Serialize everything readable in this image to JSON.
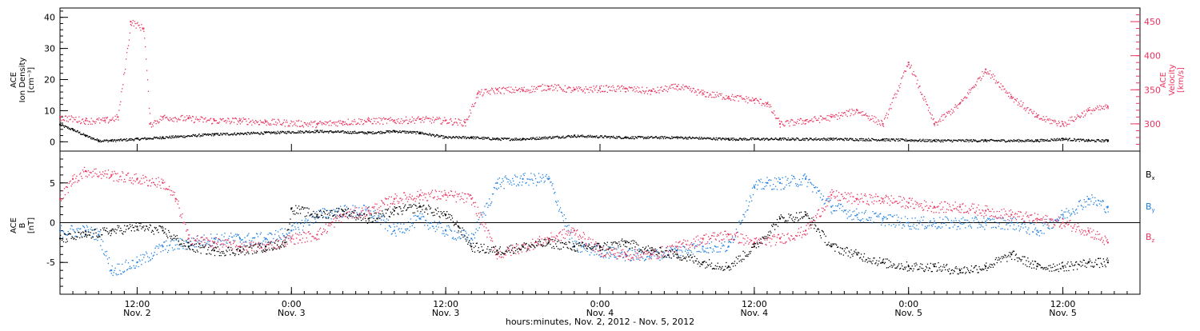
{
  "chart_data": [
    {
      "type": "scatter",
      "panel": "top",
      "left_axis_label": [
        "ACE",
        "Ion Density",
        "[cm⁻³]"
      ],
      "right_axis_label": [
        "ACE",
        "Velocity",
        "[km/s]"
      ],
      "left_ylim": [
        -3,
        43
      ],
      "right_ylim": [
        260,
        470
      ],
      "left_ticks": [
        0,
        10,
        20,
        30,
        40
      ],
      "right_ticks": [
        300,
        350,
        400,
        450
      ],
      "grid": false,
      "series": [
        {
          "name": "Ion Density",
          "axis": "left",
          "color": "#000000",
          "x": [
            0,
            1,
            2,
            3,
            4,
            6,
            8,
            12,
            16,
            20,
            24,
            26,
            28,
            30,
            32,
            34,
            36,
            40,
            44,
            48,
            52,
            56,
            60,
            64,
            68,
            72,
            76,
            78,
            80,
            81.5
          ],
          "y": [
            5.5,
            4,
            2,
            0.5,
            0.5,
            1,
            1.5,
            2.5,
            3,
            3.5,
            3,
            3.5,
            3,
            1.5,
            1.5,
            1,
            1,
            2,
            1.5,
            1.5,
            1,
            1,
            1,
            0.8,
            0.5,
            0.5,
            0.5,
            1,
            0.5,
            0.5
          ]
        },
        {
          "name": "Velocity",
          "axis": "right",
          "color": "#e8345f",
          "x": [
            0,
            2,
            3.5,
            4.5,
            5.5,
            6.5,
            7,
            8,
            10,
            12,
            14,
            16,
            20,
            22,
            24,
            26,
            28,
            30,
            31.5,
            32.5,
            34,
            36,
            38,
            40,
            42,
            44,
            46,
            48,
            50,
            52,
            54,
            55,
            56,
            58,
            60,
            62,
            64,
            66,
            68,
            70,
            72,
            74,
            76,
            78,
            80,
            81.5
          ],
          "y": [
            310,
            305,
            305,
            310,
            450,
            440,
            300,
            310,
            308,
            305,
            305,
            303,
            300,
            303,
            305,
            305,
            307,
            305,
            302,
            345,
            350,
            350,
            355,
            350,
            352,
            352,
            348,
            355,
            345,
            340,
            335,
            330,
            300,
            305,
            310,
            320,
            300,
            390,
            300,
            330,
            380,
            340,
            310,
            300,
            320,
            325
          ]
        }
      ]
    },
    {
      "type": "scatter",
      "panel": "bottom",
      "left_axis_label": [
        "ACE",
        "B",
        "[nT]"
      ],
      "ylim": [
        -9,
        9
      ],
      "ticks": [
        -5,
        0,
        5
      ],
      "grid": false,
      "series": [
        {
          "name": "Bx",
          "color": "#000000",
          "x": [
            0,
            2,
            4,
            6,
            8,
            10,
            12,
            14,
            16,
            17.5,
            18,
            20,
            22,
            24,
            26,
            28,
            30,
            31,
            32,
            34,
            36,
            38,
            40,
            42,
            44,
            46,
            48,
            50,
            52,
            54,
            56,
            58,
            60,
            62,
            64,
            66,
            68,
            70,
            72,
            74,
            76,
            78,
            80,
            81.5
          ],
          "y": [
            -2,
            -1.5,
            -1,
            -0.5,
            -1,
            -3,
            -3.5,
            -3.5,
            -3,
            -2.5,
            1.8,
            1,
            1.5,
            0.5,
            1.5,
            2,
            1,
            -0.5,
            -3,
            -3.5,
            -3,
            -2.5,
            -3,
            -3,
            -2.5,
            -3.5,
            -4,
            -5,
            -5.5,
            -3,
            0.5,
            1,
            -3,
            -4,
            -5,
            -5.5,
            -5.5,
            -6,
            -5.5,
            -4,
            -5.5,
            -5.5,
            -5,
            -5
          ]
        },
        {
          "name": "By",
          "color": "#1f7fe0",
          "x": [
            0,
            2,
            3,
            4,
            6,
            8,
            10,
            12,
            14,
            16,
            18,
            20,
            22,
            24,
            26,
            28,
            30,
            32,
            34,
            36,
            38,
            40,
            42,
            44,
            46,
            48,
            50,
            52,
            54,
            55,
            56,
            58,
            60,
            62,
            64,
            66,
            68,
            70,
            72,
            74,
            76,
            78,
            80,
            81.5
          ],
          "y": [
            -1,
            -1,
            -1.5,
            -6,
            -5,
            -3,
            -2.5,
            -2,
            -2,
            -2,
            -1,
            1,
            1.5,
            1.5,
            -1,
            0.5,
            -1,
            -2,
            5,
            5.5,
            5.5,
            -3,
            -3.5,
            -4,
            -4,
            -3.5,
            -3,
            -3,
            4.5,
            5,
            5,
            5.5,
            2,
            1,
            0.5,
            0,
            0,
            0,
            0,
            0,
            -1,
            1,
            3,
            2
          ]
        },
        {
          "name": "Bz",
          "color": "#e8345f",
          "x": [
            0,
            1,
            2,
            4,
            6,
            8,
            9,
            10,
            12,
            14,
            16,
            18,
            20,
            22,
            24,
            26,
            28,
            30,
            32,
            34,
            36,
            38,
            40,
            42,
            44,
            46,
            48,
            50,
            52,
            54,
            56,
            58,
            60,
            62,
            64,
            66,
            68,
            70,
            72,
            74,
            76,
            78,
            80,
            81.5
          ],
          "y": [
            3,
            5.5,
            6.5,
            6,
            5.5,
            5,
            3,
            -2,
            -2.5,
            -3,
            -3,
            -2,
            -1.5,
            1,
            1.5,
            3,
            3.5,
            3.5,
            3,
            -4,
            -3,
            -2,
            -1,
            -3.5,
            -4,
            -4,
            -3,
            -2,
            -1.5,
            -2.5,
            -2,
            -1,
            3.5,
            3,
            3,
            2.5,
            2,
            2,
            1.5,
            1,
            0.5,
            0,
            -1,
            -2.5
          ]
        }
      ]
    }
  ],
  "legend": [
    {
      "base": "B",
      "sub": "x",
      "color": "#000000"
    },
    {
      "base": "B",
      "sub": "y",
      "color": "#1f7fe0"
    },
    {
      "base": "B",
      "sub": "z",
      "color": "#e8345f"
    }
  ],
  "time_axis": {
    "xlim": [
      0,
      84
    ],
    "ticks": [
      {
        "hour": 6,
        "line1": "12:00",
        "line2": "Nov. 2"
      },
      {
        "hour": 18,
        "line1": "0:00",
        "line2": "Nov. 3"
      },
      {
        "hour": 30,
        "line1": "12:00",
        "line2": "Nov. 3"
      },
      {
        "hour": 42,
        "line1": "0:00",
        "line2": "Nov. 4"
      },
      {
        "hour": 54,
        "line1": "12:00",
        "line2": "Nov. 4"
      },
      {
        "hour": 66,
        "line1": "0:00",
        "line2": "Nov. 5"
      },
      {
        "hour": 78,
        "line1": "12:00",
        "line2": "Nov. 5"
      }
    ],
    "xlabel": "hours:minutes, Nov.  2, 2012 - Nov.  5, 2012"
  }
}
